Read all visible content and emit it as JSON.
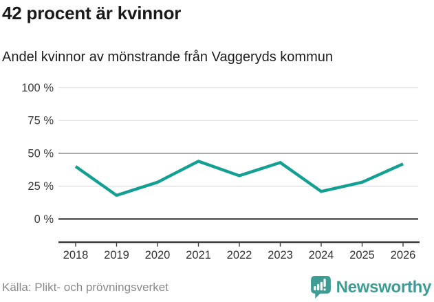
{
  "header": {
    "title": "42 procent är kvinnor",
    "subtitle": "Andel kvinnor av mönstrande från Vaggeryds kommun"
  },
  "chart_data": {
    "type": "line",
    "x": [
      2018,
      2019,
      2020,
      2021,
      2022,
      2023,
      2024,
      2025,
      2026
    ],
    "series": [
      {
        "name": "Andel kvinnor av mönstrande",
        "values": [
          40,
          18,
          28,
          44,
          33,
          43,
          21,
          28,
          42
        ]
      }
    ],
    "unit": "%",
    "y_ticks": [
      0,
      25,
      50,
      75,
      100
    ],
    "ylim": [
      0,
      100
    ],
    "grid": "horizontal",
    "legend": "none",
    "line_color": "#13a093",
    "axis_color": "#3c3c3c",
    "grid_color_light": "#e2e2e2",
    "grid_color_mid": "#999999",
    "latest_value_label": "42"
  },
  "footer": {
    "source": "Källa: Plikt- och prövningsverket",
    "brand": "Newsworthy",
    "brand_color": "#3e9c94"
  },
  "icons": {
    "brand_badge": "bar-chart-exclamation-speech-bubble-icon"
  }
}
